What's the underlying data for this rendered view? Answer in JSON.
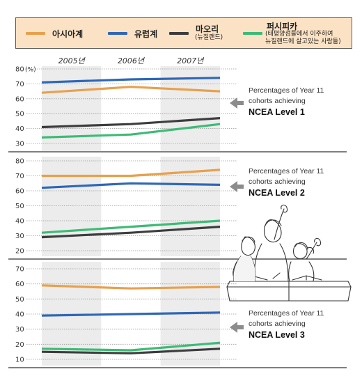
{
  "legend": [
    {
      "name": "아시아계",
      "sub": "",
      "color": "#e8a04c"
    },
    {
      "name": "유럽계",
      "sub": "",
      "color": "#2f67b7"
    },
    {
      "name": "마오리",
      "sub": "(뉴질랜드)",
      "color": "#3d3d3d"
    },
    {
      "name": "퍼시피카",
      "sub": "(태평양섬들에서 이주하여 뉴질랜드에 살고있는 사람들)",
      "sub_lines": [
        "(태평양섬들에서 이주하여",
        "뉴질랜드에 살고있는 사람들)"
      ],
      "color": "#3dbb76"
    }
  ],
  "years": [
    "2005년",
    "2006년",
    "2007년"
  ],
  "y_unit": "(%)",
  "chart_data": [
    {
      "type": "line",
      "categories": [
        "2005년",
        "2006년",
        "2007년"
      ],
      "ylim": [
        30,
        80
      ],
      "yticks": [
        30,
        40,
        50,
        60,
        70,
        80
      ],
      "annotation": [
        "Percentages of Year 11",
        "cohorts achieving",
        "NCEA Level 1"
      ],
      "series": [
        {
          "name": "아시아계",
          "values": [
            64,
            68,
            65
          ]
        },
        {
          "name": "유럽계",
          "values": [
            71,
            73,
            74
          ]
        },
        {
          "name": "마오리",
          "values": [
            41,
            43,
            47
          ]
        },
        {
          "name": "퍼시피카",
          "values": [
            34,
            36,
            43
          ]
        }
      ]
    },
    {
      "type": "line",
      "categories": [
        "2005년",
        "2006년",
        "2007년"
      ],
      "ylim": [
        20,
        80
      ],
      "yticks": [
        20,
        30,
        40,
        50,
        60,
        70,
        80
      ],
      "annotation": [
        "Percentages of Year 11",
        "cohorts achieving",
        "NCEA Level 2"
      ],
      "series": [
        {
          "name": "아시아계",
          "values": [
            70,
            70,
            74
          ]
        },
        {
          "name": "유럽계",
          "values": [
            62,
            65,
            64
          ]
        },
        {
          "name": "마오리",
          "values": [
            29,
            32,
            36
          ]
        },
        {
          "name": "퍼시피카",
          "values": [
            32,
            36,
            40
          ]
        }
      ]
    },
    {
      "type": "line",
      "categories": [
        "2005년",
        "2006년",
        "2007년"
      ],
      "ylim": [
        10,
        70
      ],
      "yticks": [
        10,
        20,
        30,
        40,
        50,
        60,
        70
      ],
      "annotation": [
        "Percentages of Year 11",
        "cohorts achieving",
        "NCEA Level 3"
      ],
      "series": [
        {
          "name": "아시아계",
          "values": [
            59,
            57,
            58
          ]
        },
        {
          "name": "유럽계",
          "values": [
            39,
            40,
            41
          ]
        },
        {
          "name": "마오리",
          "values": [
            15,
            14,
            17
          ]
        },
        {
          "name": "퍼시피카",
          "values": [
            17,
            16,
            21
          ]
        }
      ]
    }
  ]
}
